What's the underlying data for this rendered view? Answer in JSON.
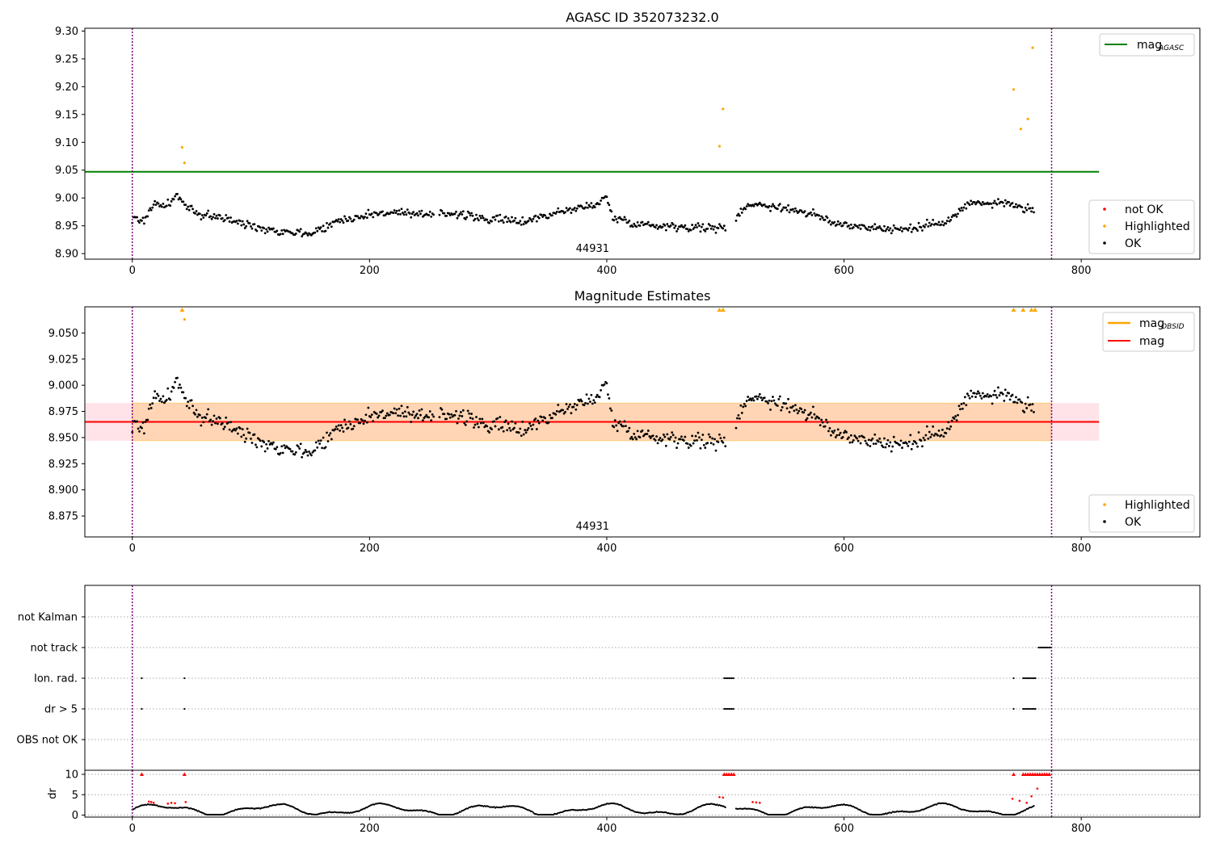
{
  "chart_data": [
    {
      "type": "scatter",
      "title": "AGASC ID 352073232.0",
      "xlabel": "",
      "ylabel": "",
      "xlim": [
        -40,
        900
      ],
      "ylim": [
        8.89,
        9.305
      ],
      "xticks": [
        0,
        200,
        400,
        600,
        800
      ],
      "yticks": [
        8.9,
        8.95,
        9.0,
        9.05,
        9.1,
        9.15,
        9.2,
        9.25,
        9.3
      ],
      "mag_agasc": 9.047,
      "mag_agasc_xrange": [
        -40,
        815
      ],
      "obsid_boundaries": [
        0,
        775
      ],
      "obsid_label": "44931",
      "legend_upper": [
        {
          "name": "mag",
          "sub": "AGASC",
          "color": "#008000"
        }
      ],
      "legend_lower": [
        {
          "name": "not OK",
          "color": "#ff0000"
        },
        {
          "name": "Highlighted",
          "color": "#ffa500"
        },
        {
          "name": "OK",
          "color": "#000000"
        }
      ],
      "ok_trend": [
        [
          0,
          8.962
        ],
        [
          10,
          8.96
        ],
        [
          18,
          8.99
        ],
        [
          28,
          8.985
        ],
        [
          38,
          9.005
        ],
        [
          45,
          8.985
        ],
        [
          55,
          8.97
        ],
        [
          70,
          8.968
        ],
        [
          90,
          8.955
        ],
        [
          120,
          8.942
        ],
        [
          150,
          8.936
        ],
        [
          175,
          8.96
        ],
        [
          200,
          8.97
        ],
        [
          220,
          8.975
        ],
        [
          240,
          8.968
        ],
        [
          260,
          8.975
        ],
        [
          300,
          8.962
        ],
        [
          330,
          8.958
        ],
        [
          360,
          8.975
        ],
        [
          385,
          8.985
        ],
        [
          400,
          9.0
        ],
        [
          405,
          8.965
        ],
        [
          430,
          8.952
        ],
        [
          470,
          8.948
        ],
        [
          500,
          8.945
        ],
        [
          505,
          8.958
        ],
        [
          520,
          8.99
        ],
        [
          540,
          8.985
        ],
        [
          560,
          8.978
        ],
        [
          575,
          8.97
        ],
        [
          590,
          8.955
        ],
        [
          610,
          8.95
        ],
        [
          640,
          8.944
        ],
        [
          660,
          8.945
        ],
        [
          690,
          8.962
        ],
        [
          705,
          8.99
        ],
        [
          740,
          8.99
        ],
        [
          760,
          8.975
        ]
      ],
      "ok_gaps": [
        [
          255,
          258
        ],
        [
          501,
          508
        ],
        [
          761,
          900
        ]
      ],
      "highlighted": [
        [
          42,
          9.091
        ],
        [
          44,
          9.063
        ],
        [
          495,
          9.093
        ],
        [
          498,
          9.16
        ],
        [
          743,
          9.195
        ],
        [
          749,
          9.124
        ],
        [
          755,
          9.142
        ],
        [
          759,
          9.27
        ]
      ]
    },
    {
      "type": "scatter",
      "title": "Magnitude Estimates",
      "xlabel": "",
      "ylabel": "",
      "xlim": [
        -40,
        900
      ],
      "ylim": [
        8.855,
        9.075
      ],
      "xticks": [
        0,
        200,
        400,
        600,
        800
      ],
      "yticks": [
        8.875,
        8.9,
        8.925,
        8.95,
        8.975,
        9.0,
        9.025,
        9.05
      ],
      "mag": 8.965,
      "mag_obsid_band": [
        8.947,
        8.983
      ],
      "mag_band_xrange": [
        -40,
        815
      ],
      "obsid_boundaries": [
        0,
        775
      ],
      "obsid_label": "44931",
      "legend_upper": [
        {
          "name": "mag",
          "sub": "OBSID",
          "color": "#ffa500"
        },
        {
          "name": "mag",
          "sub": "",
          "color": "#ff0000"
        }
      ],
      "legend_lower": [
        {
          "name": "Highlighted",
          "color": "#ffa500"
        },
        {
          "name": "OK",
          "color": "#000000"
        }
      ],
      "highlighted_points": [
        [
          44,
          9.063
        ]
      ],
      "highlighted_clipped_x": [
        42,
        495,
        498,
        743,
        751,
        758,
        761
      ]
    },
    {
      "type": "scatter",
      "xlim": [
        -40,
        900
      ],
      "flag_rows": [
        "not Kalman",
        "not track",
        "Ion. rad.",
        "dr > 5",
        "OBS not OK"
      ],
      "flags": {
        "not track": [
          [
            764,
            775
          ]
        ],
        "Ion. rad.": [
          [
            8,
            8
          ],
          [
            44,
            44
          ],
          [
            499,
            508
          ],
          [
            743,
            743
          ],
          [
            751,
            762
          ]
        ],
        "dr > 5": [
          [
            8,
            8
          ],
          [
            44,
            44
          ],
          [
            499,
            508
          ],
          [
            743,
            743
          ],
          [
            751,
            762
          ]
        ]
      },
      "obsid_boundaries": [
        0,
        775
      ]
    },
    {
      "type": "scatter",
      "ylabel": "dr",
      "xlim": [
        -40,
        900
      ],
      "ylim": [
        -0.5,
        11
      ],
      "yticks": [
        0,
        5,
        10
      ],
      "xticks": [
        0,
        200,
        400,
        600,
        800
      ],
      "dr_gaps": [
        [
          501,
          508
        ],
        [
          761,
          900
        ]
      ],
      "dr_red_clipped_x": [
        8,
        44,
        499,
        501,
        503,
        505,
        507,
        743,
        751,
        753,
        755,
        757,
        759,
        761,
        763,
        765,
        767,
        769,
        771,
        773
      ],
      "dr_red_points": [
        [
          14,
          3.3
        ],
        [
          16,
          3.2
        ],
        [
          18,
          3.0
        ],
        [
          30,
          2.8
        ],
        [
          33,
          3.0
        ],
        [
          36,
          2.9
        ],
        [
          45,
          3.2
        ],
        [
          495,
          4.4
        ],
        [
          498,
          4.3
        ],
        [
          523,
          3.2
        ],
        [
          526,
          3.1
        ],
        [
          529,
          3.0
        ],
        [
          742,
          4.0
        ],
        [
          748,
          3.5
        ],
        [
          754,
          3.0
        ],
        [
          758,
          4.6
        ],
        [
          763,
          6.5
        ]
      ],
      "obsid_boundaries": [
        0,
        775
      ]
    }
  ]
}
